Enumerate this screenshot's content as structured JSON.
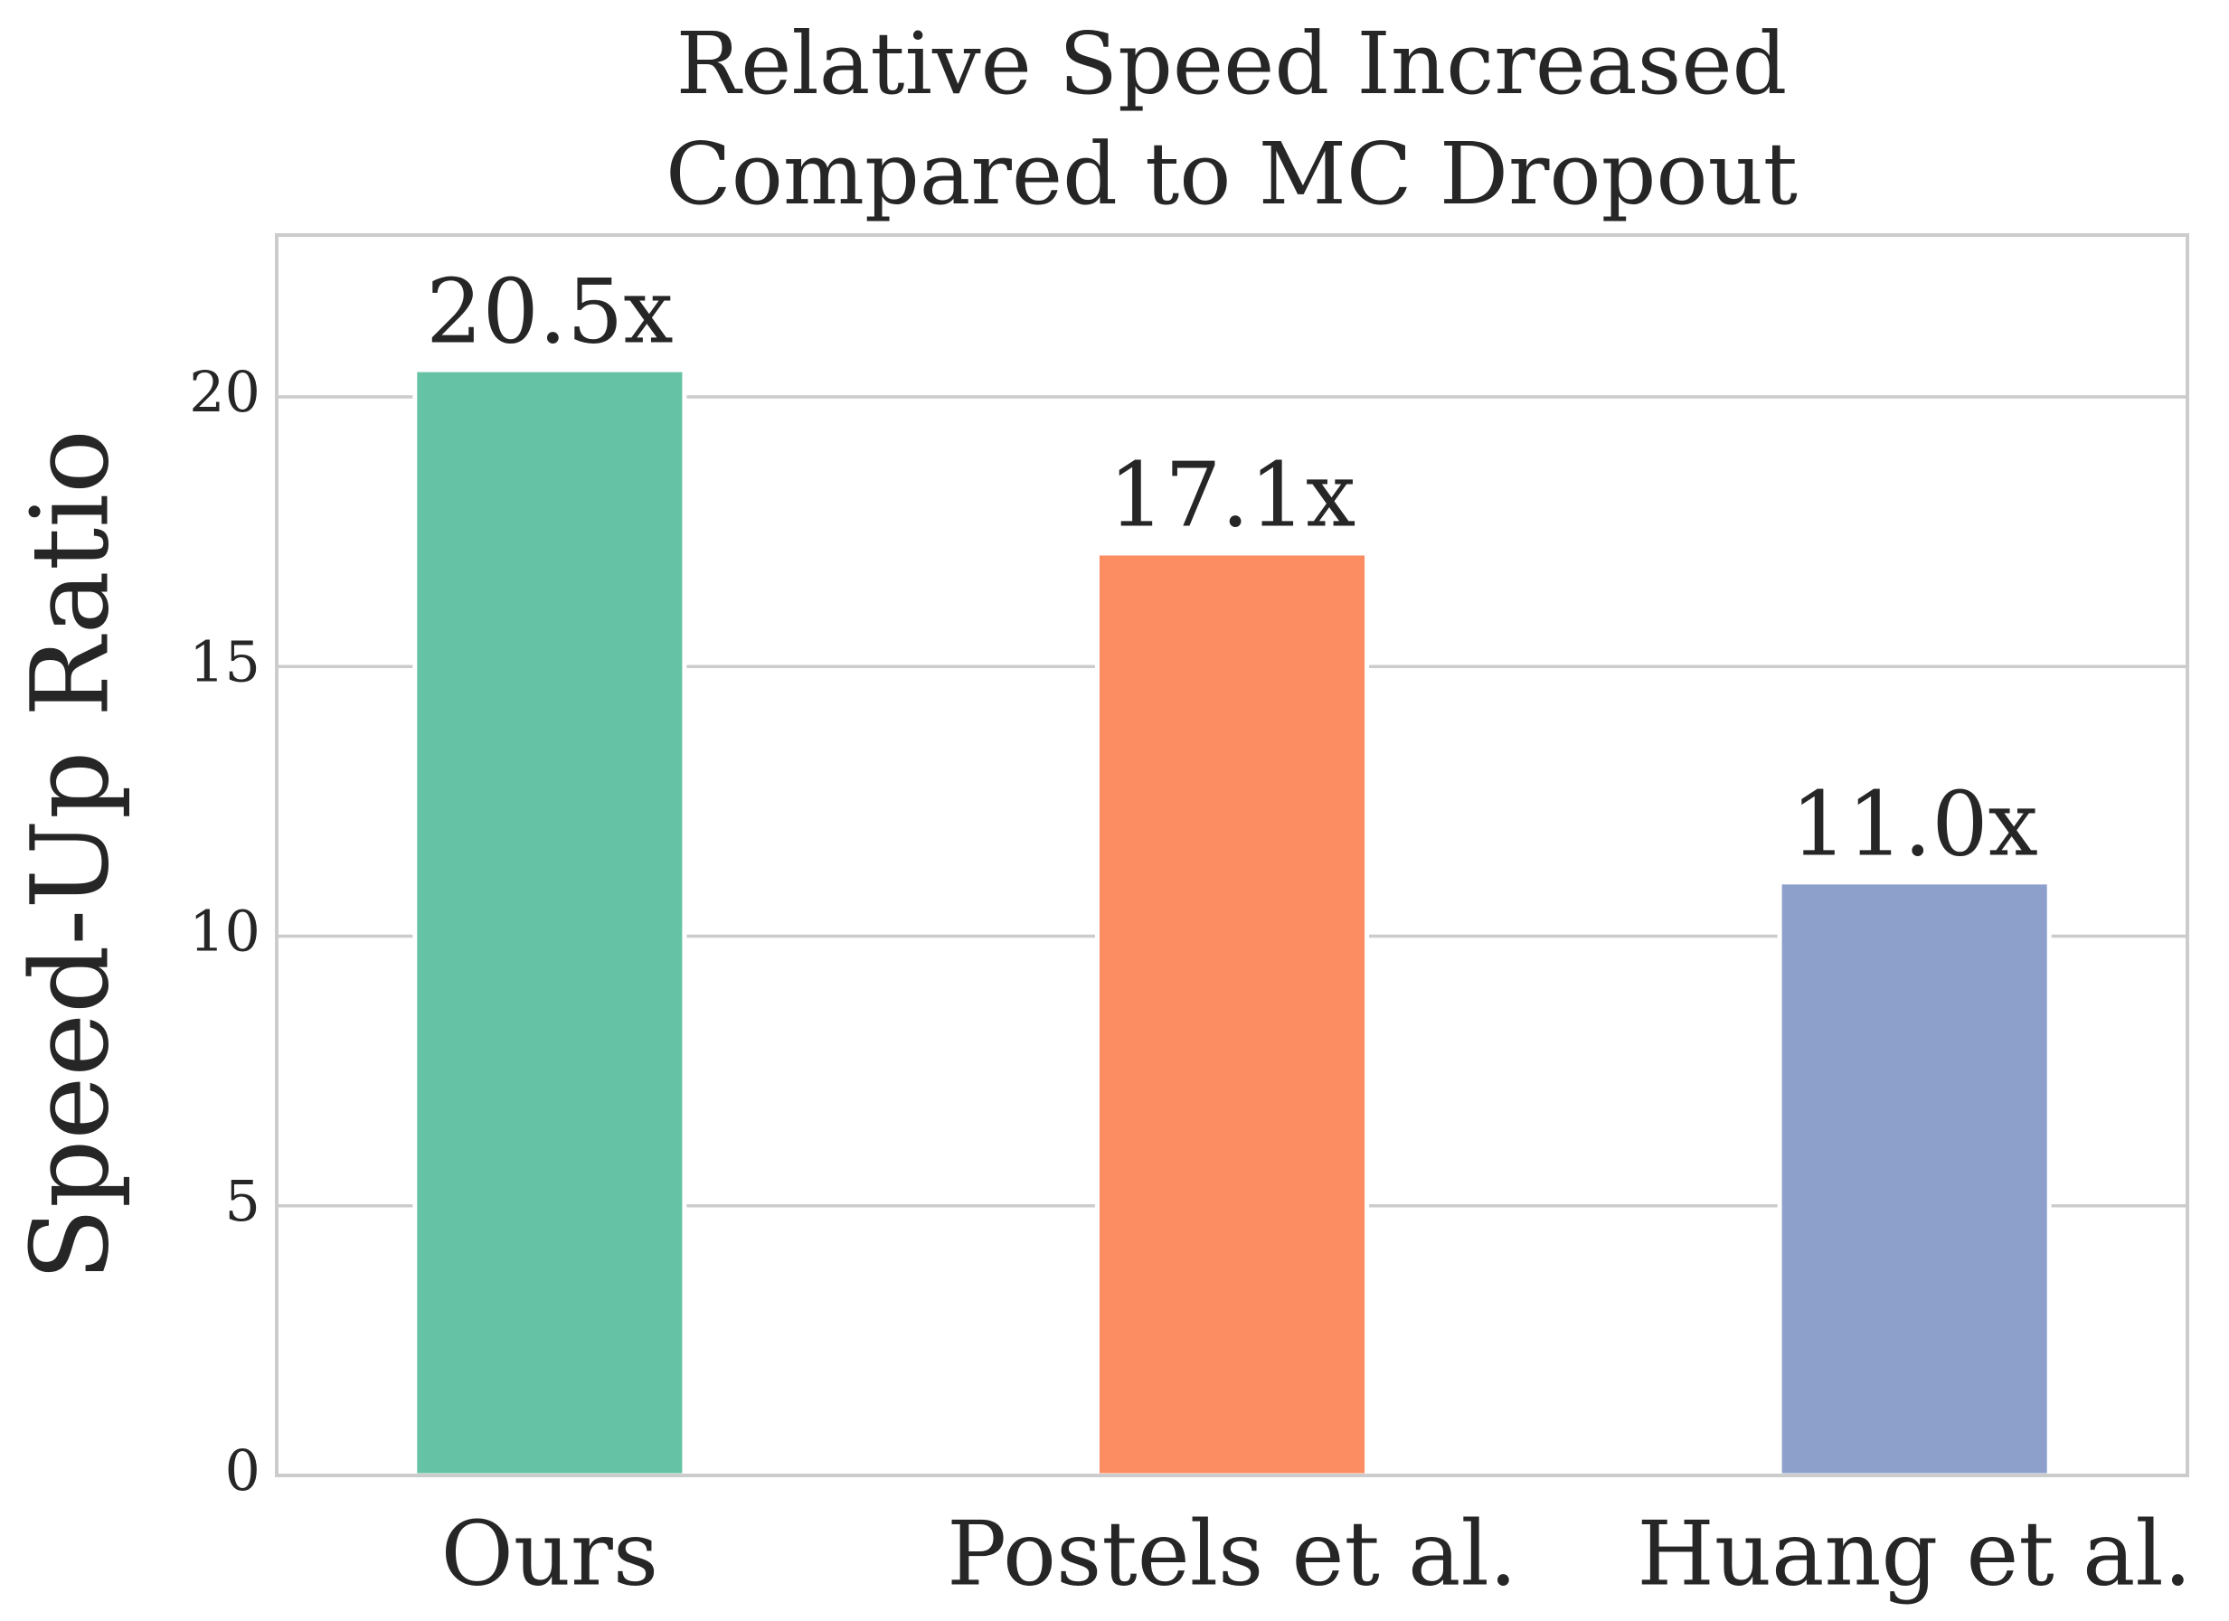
{
  "chart_data": {
    "type": "bar",
    "title": [
      "Relative Speed Increased",
      "Compared to MC Dropout"
    ],
    "y_label": "Speed-Up Ratio",
    "categories": [
      "Ours",
      "Postels et al.",
      "Huang et al."
    ],
    "values": [
      20.5,
      17.1,
      11.0
    ],
    "value_labels": [
      "20.5x",
      "17.1x",
      "11.0x"
    ],
    "colors": [
      "#66c2a5",
      "#fc8d62",
      "#8da0cb"
    ],
    "ylim": [
      0,
      23
    ],
    "yticks": [
      0,
      5,
      10,
      15,
      20
    ],
    "grid": true
  }
}
